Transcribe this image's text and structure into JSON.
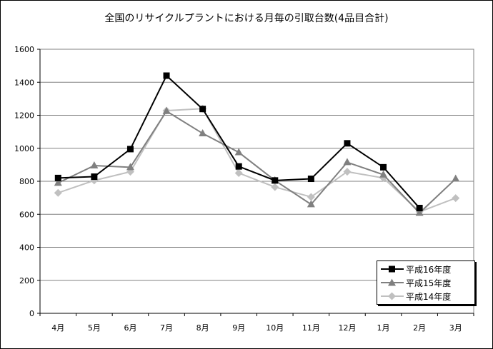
{
  "chart_data": {
    "type": "line",
    "title": "全国のリサイクルプラントにおける月毎の引取台数(4品目合計)",
    "categories": [
      "4月",
      "5月",
      "6月",
      "7月",
      "8月",
      "9月",
      "10月",
      "11月",
      "12月",
      "1月",
      "2月",
      "3月"
    ],
    "ylim": [
      0,
      1600
    ],
    "yticks": [
      0,
      200,
      400,
      600,
      800,
      1000,
      1200,
      1400,
      1600
    ],
    "grid": true,
    "legend_position": "bottom-right",
    "series": [
      {
        "name": "平成16年度",
        "marker": "square",
        "color": "#000000",
        "values": [
          820,
          828,
          995,
          1440,
          1238,
          890,
          805,
          815,
          1030,
          885,
          638,
          null
        ]
      },
      {
        "name": "平成15年度",
        "marker": "triangle",
        "color": "#808080",
        "values": [
          790,
          895,
          885,
          1225,
          1090,
          975,
          805,
          660,
          915,
          840,
          608,
          815
        ]
      },
      {
        "name": "平成14年度",
        "marker": "diamond",
        "color": "#c0c0c0",
        "values": [
          730,
          805,
          858,
          1228,
          1240,
          850,
          765,
          705,
          858,
          820,
          615,
          698
        ]
      }
    ]
  }
}
